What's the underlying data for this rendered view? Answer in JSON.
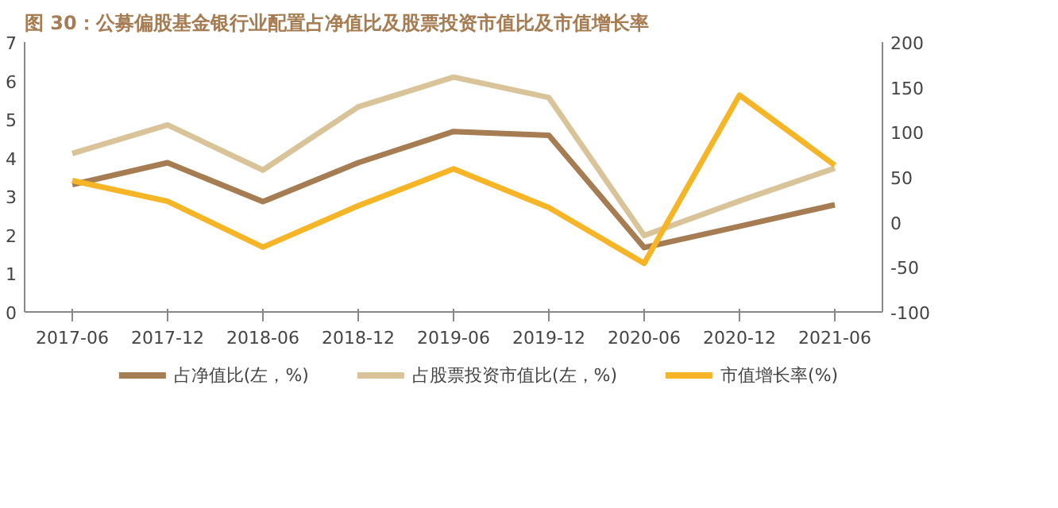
{
  "chart_data": {
    "type": "line",
    "title": "图 30：公募偏股基金银行业配置占净值比及股票投资市值比及市值增长率",
    "categories": [
      "2017-06",
      "2017-12",
      "2018-06",
      "2018-12",
      "2019-06",
      "2019-12",
      "2020-06",
      "2020-12",
      "2021-06"
    ],
    "series": [
      {
        "name": "占净值比(左，%)",
        "color": "#a67c52",
        "values": [
          3.3,
          3.87,
          2.86,
          3.87,
          4.68,
          4.58,
          1.67,
          2.22,
          2.78
        ]
      },
      {
        "name": "占股票投资市值比(左，%)",
        "color": "#d9c49a",
        "values": [
          4.11,
          4.85,
          3.68,
          5.32,
          6.09,
          5.56,
          1.98,
          2.88,
          3.73
        ]
      },
      {
        "name": "市值增长率(%)",
        "color": "#f5b526",
        "axis": "y2",
        "values": [
          46,
          23,
          -28,
          18,
          59,
          16,
          -46,
          141,
          63
        ]
      }
    ],
    "ylim": [
      0,
      7
    ],
    "yticks": [
      0,
      1,
      2,
      3,
      4,
      5,
      6,
      7
    ],
    "y2lim": [
      -100,
      200
    ],
    "y2ticks": [
      -100,
      -50,
      0,
      50,
      100,
      150,
      200
    ],
    "grid": false,
    "legend": "bottom",
    "marker": "none",
    "line_style": "solid"
  }
}
